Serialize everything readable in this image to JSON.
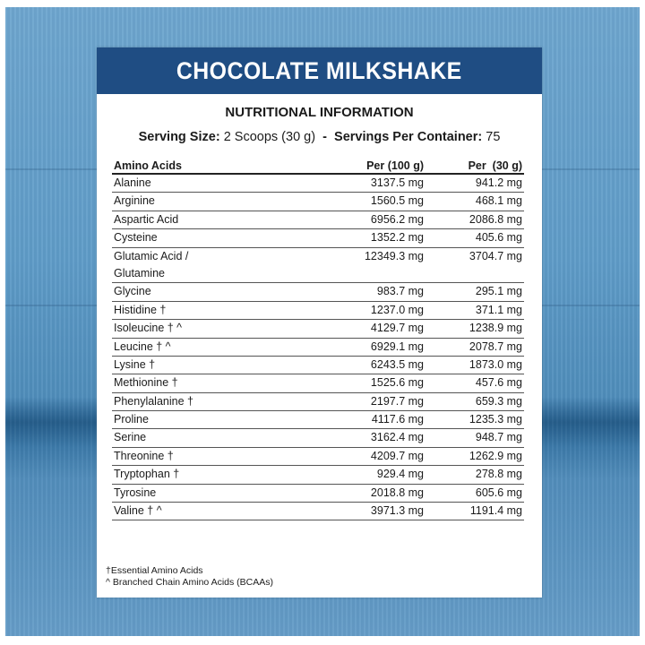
{
  "banner": {
    "title": "CHOCOLATE MILKSHAKE"
  },
  "subtitle": "NUTRITIONAL INFORMATION",
  "serving": {
    "size_label": "Serving Size:",
    "size_value": "2 Scoops (30 g)",
    "separator": "-",
    "per_container_label": "Servings Per Container:",
    "per_container_value": "75"
  },
  "table": {
    "headers": [
      "Amino Acids",
      "Per (100 g)",
      "Per  (30 g)"
    ],
    "rows": [
      {
        "name": "Alanine",
        "per100": "3137.5 mg",
        "per30": "941.2 mg"
      },
      {
        "name": "Arginine",
        "per100": "1560.5 mg",
        "per30": "468.1 mg"
      },
      {
        "name": "Aspartic Acid",
        "per100": "6956.2 mg",
        "per30": "2086.8 mg"
      },
      {
        "name": "Cysteine",
        "per100": "1352.2 mg",
        "per30": "405.6 mg"
      },
      {
        "name": "Glutamic Acid /",
        "name2": "Glutamine",
        "per100": "12349.3 mg",
        "per30": "3704.7 mg"
      },
      {
        "name": "Glycine",
        "per100": "983.7 mg",
        "per30": "295.1 mg"
      },
      {
        "name": "Histidine †",
        "per100": "1237.0 mg",
        "per30": "371.1 mg"
      },
      {
        "name": "Isoleucine † ^",
        "per100": "4129.7 mg",
        "per30": "1238.9 mg"
      },
      {
        "name": "Leucine † ^",
        "per100": "6929.1 mg",
        "per30": "2078.7 mg"
      },
      {
        "name": "Lysine †",
        "per100": "6243.5 mg",
        "per30": "1873.0 mg"
      },
      {
        "name": "Methionine †",
        "per100": "1525.6 mg",
        "per30": "457.6 mg"
      },
      {
        "name": "Phenylalanine †",
        "per100": "2197.7 mg",
        "per30": "659.3 mg"
      },
      {
        "name": "Proline",
        "per100": "4117.6 mg",
        "per30": "1235.3 mg"
      },
      {
        "name": "Serine",
        "per100": "3162.4 mg",
        "per30": "948.7 mg"
      },
      {
        "name": "Threonine †",
        "per100": "4209.7 mg",
        "per30": "1262.9 mg"
      },
      {
        "name": "Tryptophan †",
        "per100": "929.4 mg",
        "per30": "278.8 mg"
      },
      {
        "name": "Tyrosine",
        "per100": "2018.8 mg",
        "per30": "605.6 mg"
      },
      {
        "name": "Valine † ^",
        "per100": "3971.3 mg",
        "per30": "1191.4 mg"
      }
    ]
  },
  "footnotes": [
    "†Essential Amino Acids",
    "^ Branched Chain Amino Acids (BCAAs)"
  ],
  "colors": {
    "banner": "#1f4d83",
    "background": "#5f9cc8"
  }
}
